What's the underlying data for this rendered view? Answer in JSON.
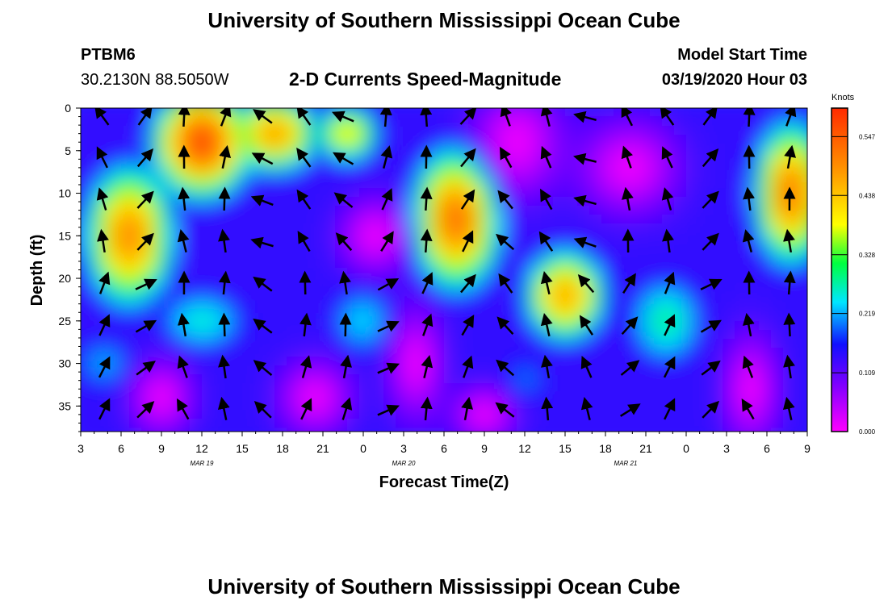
{
  "header": {
    "title": "University of Southern Mississippi Ocean Cube",
    "station_name": "PTBM6",
    "station_coords": "30.2130N 88.5050W",
    "plot_subtitle": "2-D Currents Speed-Magnitude",
    "model_label": "Model Start Time",
    "model_time": "03/19/2020 Hour 03"
  },
  "footer": {
    "title": "University of Southern Mississippi Ocean Cube"
  },
  "colorbar": {
    "unit": "Knots",
    "ticks": [
      "0.547",
      "0.438",
      "0.328",
      "0.219",
      "0.109",
      "0.000"
    ],
    "tick_values": [
      0.547,
      0.438,
      0.328,
      0.219,
      0.109,
      0.0
    ],
    "stops": [
      "#ff00ff",
      "#7a00ff",
      "#1010ff",
      "#00e6ff",
      "#00ff40",
      "#ffff00",
      "#ff9a00",
      "#ff2a00"
    ]
  },
  "chart_data": {
    "type": "heatmap",
    "xlabel": "Forecast Time(Z)",
    "ylabel": "Depth (ft)",
    "x_tick_labels": [
      "3",
      "6",
      "9",
      "12",
      "15",
      "18",
      "21",
      "0",
      "3",
      "6",
      "9",
      "12",
      "15",
      "18",
      "21",
      "0",
      "3",
      "6",
      "9"
    ],
    "x_date_labels": [
      {
        "hour_index": 3,
        "label": "MAR 19"
      },
      {
        "hour_index": 8,
        "label": "MAR 20"
      },
      {
        "hour_index": 13.5,
        "label": "MAR 21"
      }
    ],
    "y_ticks": [
      0,
      5,
      10,
      15,
      20,
      25,
      30,
      35
    ],
    "ylim": [
      0,
      38
    ],
    "y_inverted": true,
    "x_range_hours_from_start": [
      0,
      54
    ],
    "value_unit": "Knots",
    "vmin": 0.0,
    "vmax": 0.6,
    "speed_hotspots_estimated": [
      {
        "time": "MAR 19 04Z-08Z",
        "depth_ft": [
          8,
          22
        ],
        "speed_knots": 0.5
      },
      {
        "time": "MAR 19 13Z-17Z",
        "depth_ft": [
          0,
          12
        ],
        "speed_knots": 0.58
      },
      {
        "time": "MAR 19 18Z-22Z",
        "depth_ft": [
          0,
          8
        ],
        "speed_knots": 0.48
      },
      {
        "time": "MAR 20 04Z-09Z",
        "depth_ft": [
          5,
          22
        ],
        "speed_knots": 0.52
      },
      {
        "time": "MAR 20 13Z-16Z",
        "depth_ft": [
          18,
          28
        ],
        "speed_knots": 0.46
      },
      {
        "time": "MAR 21 06Z-09Z",
        "depth_ft": [
          0,
          18
        ],
        "speed_knots": 0.52
      }
    ],
    "legend_position": "right",
    "grid": false
  }
}
